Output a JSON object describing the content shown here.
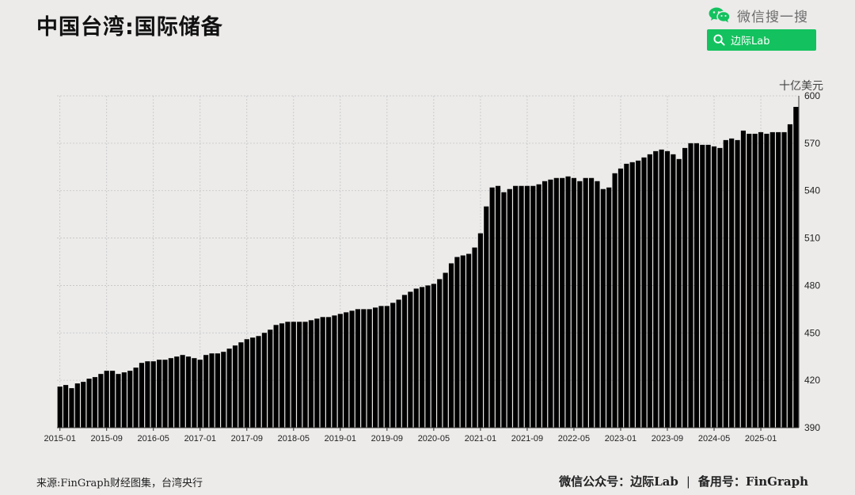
{
  "header": {
    "title": "中国台湾:国际储备",
    "wechat_label": "微信搜一搜",
    "search_label": "边际Lab"
  },
  "footer": {
    "source": "来源:FinGraph财经图集，台湾央行",
    "account": "微信公众号：边际Lab",
    "separator": "|",
    "record": "备用号：FinGraph"
  },
  "colors": {
    "bar": "#000000",
    "background": "#ecebea",
    "accent": "#13c25e"
  },
  "icons": [
    "wechat-icon",
    "search-icon"
  ],
  "chart_data": {
    "type": "bar",
    "title": "中国台湾:国际储备",
    "ylabel": "十亿美元",
    "ylim": [
      390,
      600
    ],
    "y_ticks": [
      390,
      420,
      450,
      480,
      510,
      540,
      570,
      600
    ],
    "y_axis_position": "right",
    "grid": true,
    "x_ticks": [
      "2015-01",
      "2015-09",
      "2016-05",
      "2017-01",
      "2017-09",
      "2018-05",
      "2019-01",
      "2019-09",
      "2020-05",
      "2021-01",
      "2021-09",
      "2022-05",
      "2023-01",
      "2023-09",
      "2024-05",
      "2025-01"
    ],
    "start_month": "2015-01",
    "values": [
      416,
      417,
      415,
      418,
      419,
      421,
      422,
      424,
      426,
      426,
      424,
      425,
      426,
      428,
      431,
      432,
      432,
      433,
      433,
      434,
      435,
      436,
      435,
      434,
      433,
      436,
      437,
      437,
      438,
      440,
      442,
      444,
      446,
      447,
      448,
      450,
      452,
      455,
      456,
      457,
      457,
      457,
      457,
      458,
      459,
      460,
      460,
      461,
      462,
      463,
      464,
      465,
      465,
      465,
      466,
      467,
      467,
      469,
      471,
      474,
      476,
      478,
      479,
      480,
      481,
      484,
      488,
      494,
      498,
      499,
      500,
      504,
      513,
      530,
      542,
      543,
      539,
      541,
      543,
      543,
      543,
      543,
      544,
      546,
      547,
      548,
      548,
      549,
      548,
      546,
      548,
      548,
      546,
      541,
      542,
      551,
      554,
      557,
      558,
      559,
      561,
      563,
      565,
      566,
      565,
      563,
      560,
      567,
      570,
      570,
      569,
      569,
      568,
      567,
      572,
      573,
      572,
      578,
      576,
      576,
      577,
      576,
      577,
      577,
      577,
      582,
      593
    ]
  }
}
